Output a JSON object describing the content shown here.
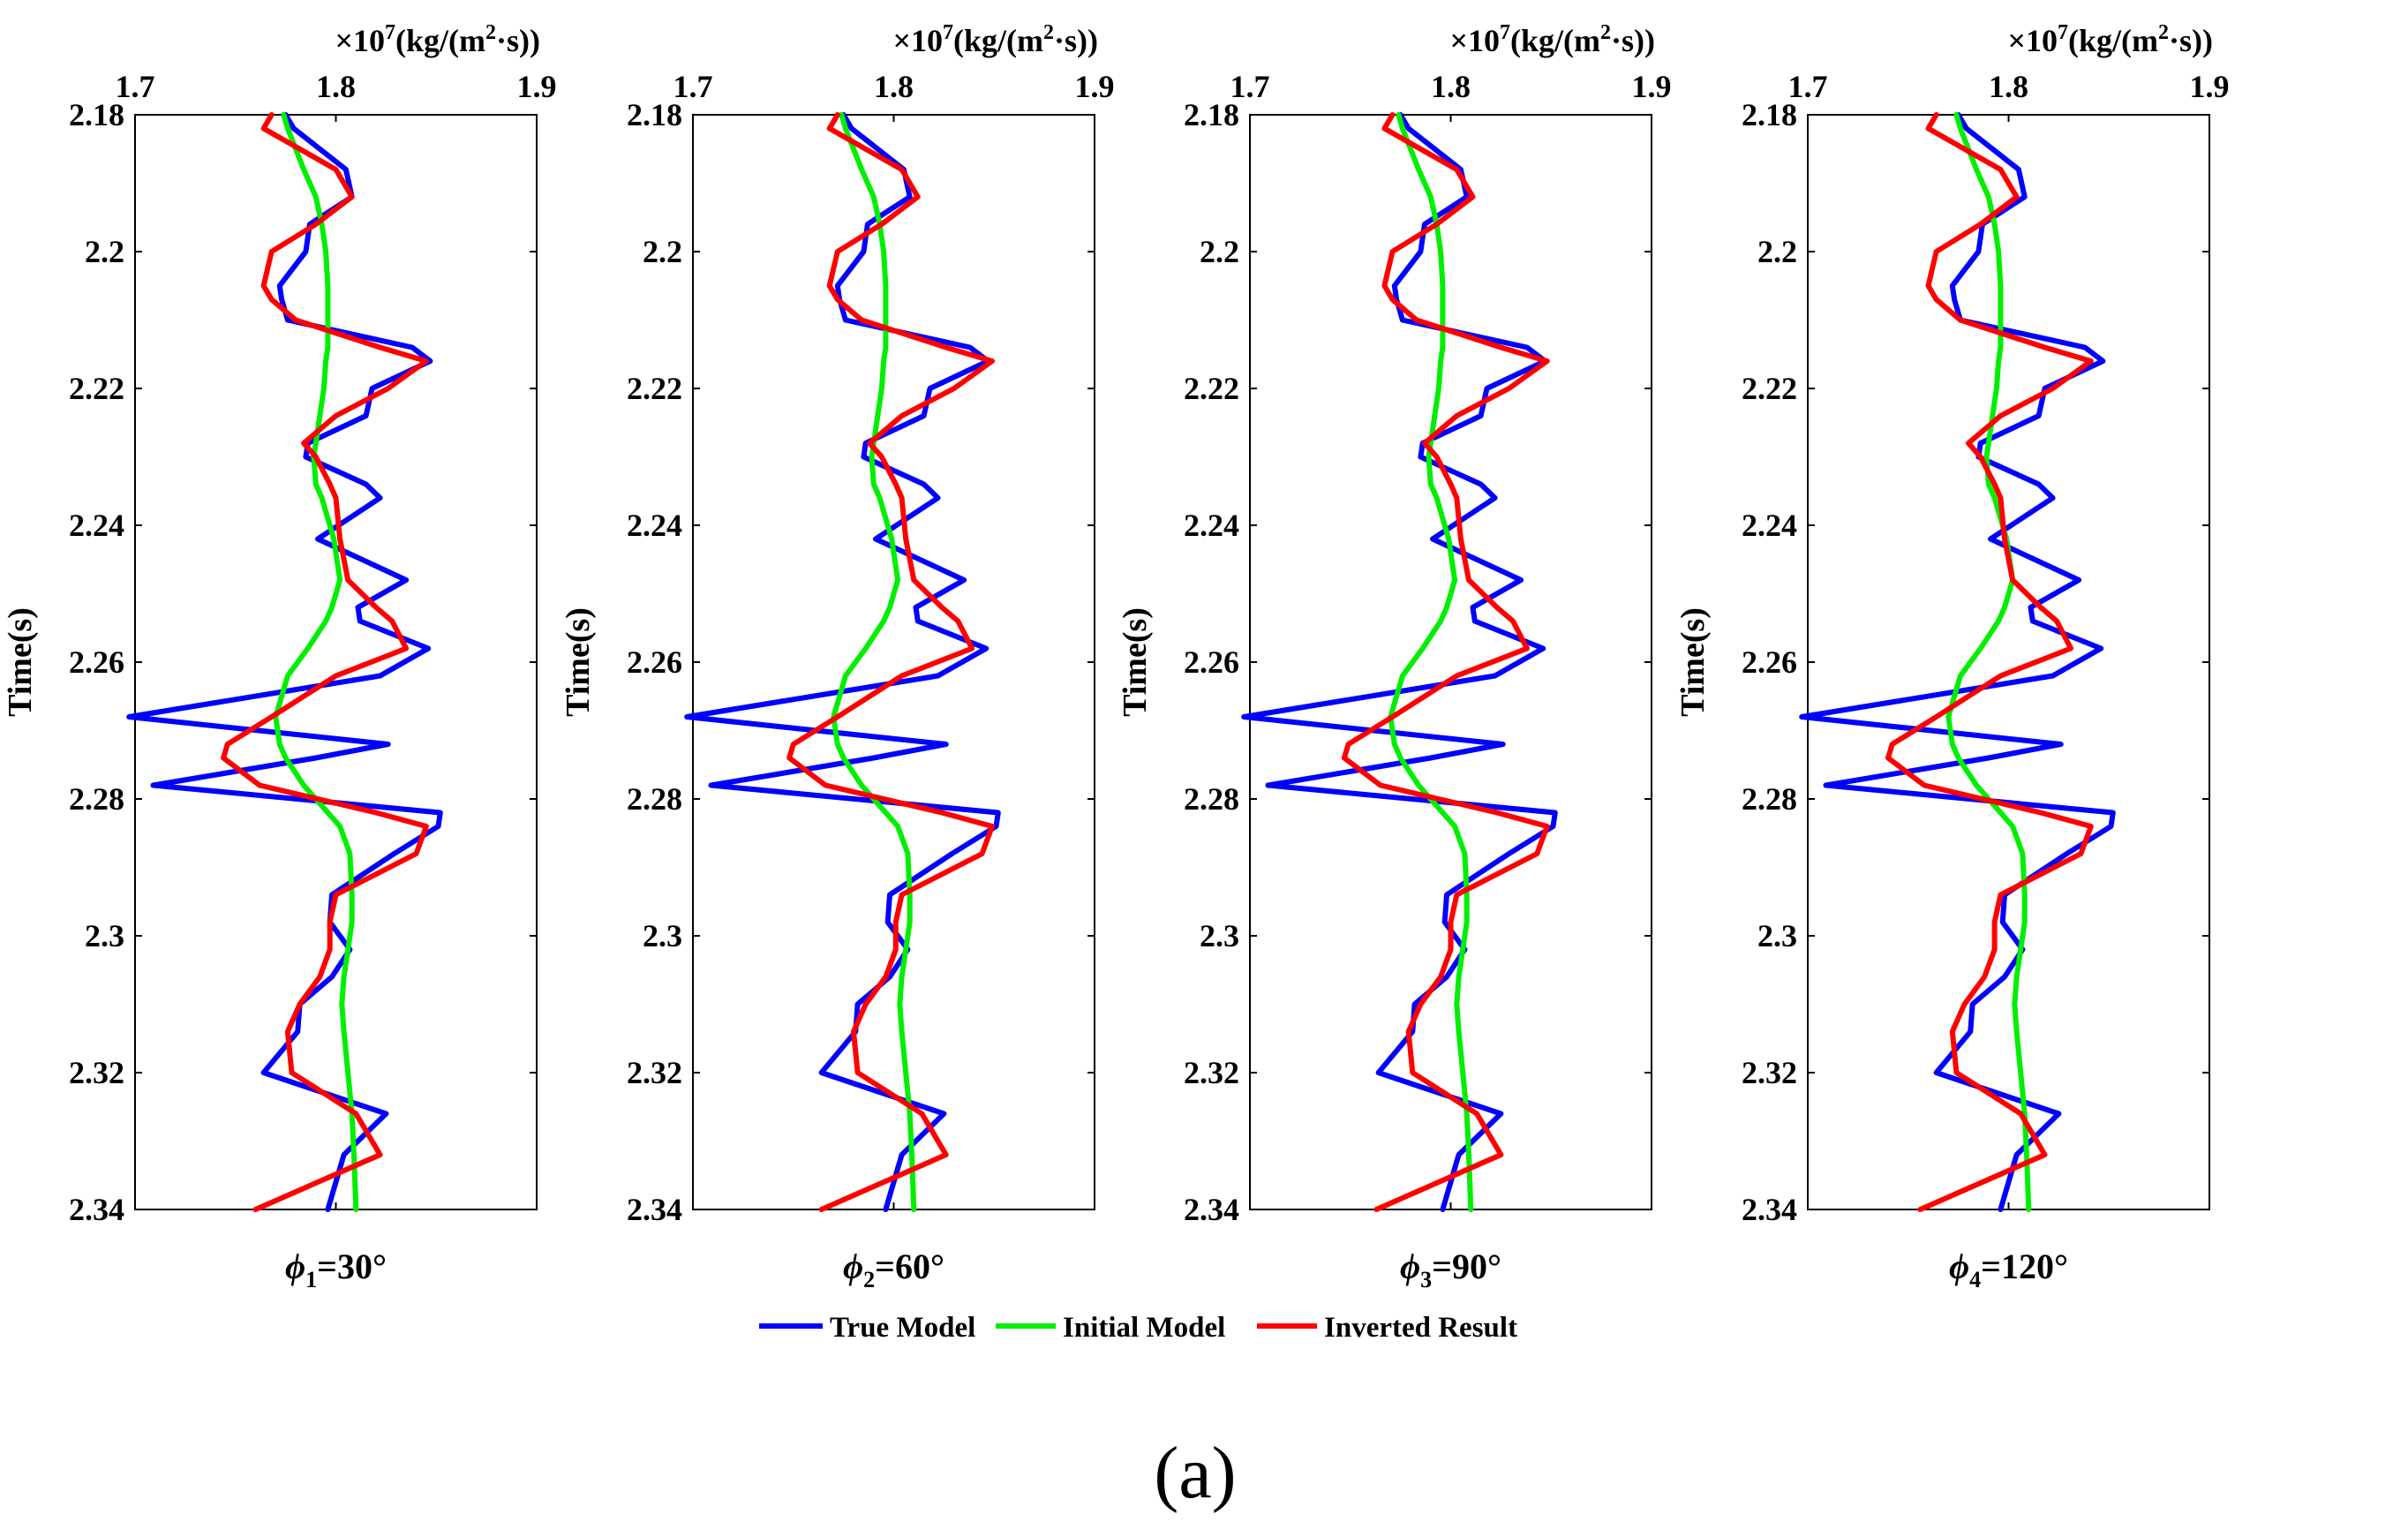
{
  "chart_data": {
    "type": "line",
    "panel_label": "(a)",
    "x_unit_prefix": "×10",
    "x_unit_exponent": "7",
    "x_unit_body": "(kg/(m",
    "x_unit_sq": "2",
    "x_unit_tail": "·s))",
    "ylabel": "Time(s)",
    "xlim": [
      1.7,
      1.9
    ],
    "ylim": [
      2.18,
      2.34
    ],
    "x_ticks": [
      1.7,
      1.8,
      1.9
    ],
    "x_tick_labels": [
      "1.7",
      "1.8",
      "1.9"
    ],
    "y_ticks": [
      2.18,
      2.2,
      2.22,
      2.24,
      2.26,
      2.28,
      2.3,
      2.32,
      2.34
    ],
    "y_tick_labels": [
      "2.18",
      "2.2",
      "2.22",
      "2.24",
      "2.26",
      "2.28",
      "2.3",
      "2.32",
      "2.34"
    ],
    "time": [
      2.18,
      2.182,
      2.188,
      2.192,
      2.196,
      2.2,
      2.205,
      2.207,
      2.21,
      2.214,
      2.216,
      2.22,
      2.224,
      2.228,
      2.23,
      2.234,
      2.236,
      2.242,
      2.248,
      2.252,
      2.254,
      2.258,
      2.262,
      2.268,
      2.272,
      2.274,
      2.278,
      2.282,
      2.284,
      2.288,
      2.294,
      2.298,
      2.302,
      2.306,
      2.31,
      2.314,
      2.32,
      2.326,
      2.332,
      2.34
    ],
    "series": [
      {
        "name": "True Model",
        "color": "#0000ff",
        "values": [
          1.775,
          1.779,
          1.805,
          1.808,
          1.787,
          1.785,
          1.772,
          1.773,
          1.776,
          1.838,
          1.847,
          1.818,
          1.815,
          1.786,
          1.785,
          1.815,
          1.822,
          1.791,
          1.835,
          1.811,
          1.812,
          1.846,
          1.822,
          1.697,
          1.826,
          1.79,
          1.709,
          1.852,
          1.851,
          1.829,
          1.798,
          1.797,
          1.807,
          1.798,
          1.782,
          1.781,
          1.764,
          1.825,
          1.804,
          1.796
        ]
      },
      {
        "name": "Initial Model",
        "color": "#00ee00",
        "values": [
          1.774,
          1.776,
          1.784,
          1.79,
          1.793,
          1.795,
          1.796,
          1.796,
          1.796,
          1.796,
          1.795,
          1.794,
          1.792,
          1.79,
          1.789,
          1.79,
          1.793,
          1.799,
          1.802,
          1.798,
          1.795,
          1.786,
          1.776,
          1.77,
          1.772,
          1.775,
          1.784,
          1.796,
          1.802,
          1.807,
          1.808,
          1.808,
          1.806,
          1.804,
          1.803,
          1.804,
          1.806,
          1.808,
          1.809,
          1.81
        ]
      },
      {
        "name": "Inverted Result",
        "color": "#ff0000",
        "values": [
          1.768,
          1.764,
          1.8,
          1.808,
          1.79,
          1.768,
          1.764,
          1.768,
          1.78,
          1.822,
          1.845,
          1.826,
          1.8,
          1.784,
          1.79,
          1.797,
          1.8,
          1.802,
          1.806,
          1.82,
          1.828,
          1.835,
          1.8,
          1.768,
          1.746,
          1.744,
          1.762,
          1.82,
          1.845,
          1.84,
          1.8,
          1.797,
          1.797,
          1.792,
          1.782,
          1.776,
          1.778,
          1.81,
          1.822,
          1.76
        ]
      }
    ],
    "panels": [
      {
        "caption_symbol": "ϕ",
        "caption_sub": "1",
        "caption_tail": "=30°",
        "offsets": [
          0,
          0,
          0
        ]
      },
      {
        "caption_symbol": "ϕ",
        "caption_sub": "2",
        "caption_tail": "=60°",
        "offsets": [
          0,
          0,
          0.004
        ]
      },
      {
        "caption_symbol": "ϕ",
        "caption_sub": "3",
        "caption_tail": "=90°",
        "offsets": [
          0,
          0,
          0.003
        ]
      },
      {
        "caption_symbol": "ϕ",
        "caption_sub": "4",
        "caption_tail": "=120°",
        "offsets": [
          0,
          0,
          -0.004
        ]
      }
    ],
    "legend_position": "bottom-center"
  }
}
